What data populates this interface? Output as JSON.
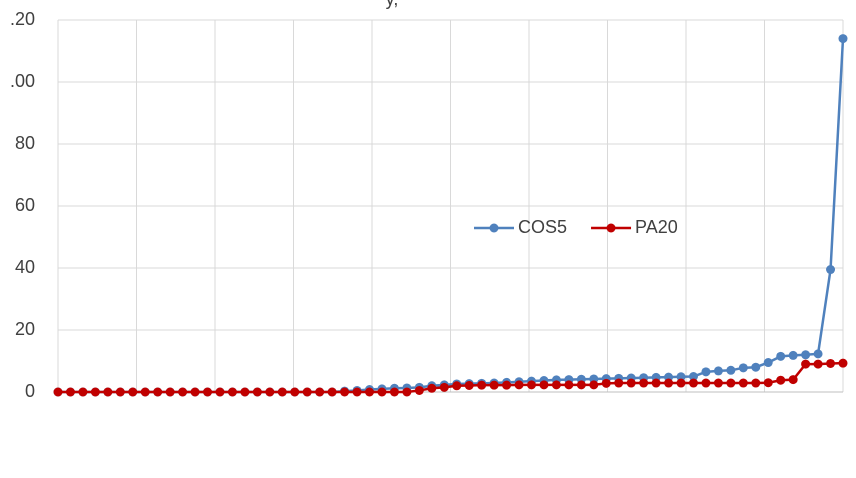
{
  "chart_data": {
    "type": "line",
    "title": "y,",
    "categories": [
      null,
      null,
      null,
      null,
      null,
      null,
      null,
      null,
      null,
      null,
      null,
      null,
      null,
      null,
      null,
      null,
      null,
      null,
      null,
      null,
      null,
      null,
      null,
      null,
      null,
      null,
      null,
      null,
      null,
      null,
      null,
      null,
      null,
      null,
      null,
      null,
      null,
      null,
      null,
      null,
      null,
      null,
      null,
      null,
      null,
      null,
      null,
      null,
      null,
      null,
      null,
      null,
      null,
      null,
      null,
      null,
      null,
      null,
      null,
      null,
      null,
      null,
      null,
      null
    ],
    "series": [
      {
        "name": "COS5",
        "color": "#4f81bd",
        "values": [
          0,
          0,
          0,
          0,
          0,
          0,
          0,
          0,
          0,
          0,
          0,
          0,
          0,
          0,
          0,
          0,
          0,
          0,
          0,
          0,
          0,
          0,
          0,
          0.3,
          0.5,
          0.8,
          1.0,
          1.2,
          1.3,
          1.5,
          2.0,
          2.3,
          2.6,
          2.7,
          2.8,
          2.9,
          3.1,
          3.3,
          3.5,
          3.7,
          3.9,
          4.0,
          4.1,
          4.2,
          4.3,
          4.4,
          4.5,
          4.6,
          4.7,
          4.8,
          4.9,
          5.0,
          6.5,
          6.8,
          7.0,
          7.8,
          8.0,
          9.5,
          11.5,
          11.8,
          12.0,
          12.3,
          39.5,
          114
        ]
      },
      {
        "name": "PA20",
        "color": "#c00000",
        "values": [
          0,
          0,
          0,
          0,
          0,
          0,
          0,
          0,
          0,
          0,
          0,
          0,
          0,
          0,
          0,
          0,
          0,
          0,
          0,
          0,
          0,
          0,
          0,
          0,
          0,
          0,
          0,
          0,
          0,
          0.5,
          1.2,
          1.5,
          2.0,
          2.1,
          2.2,
          2.2,
          2.2,
          2.3,
          2.3,
          2.3,
          2.3,
          2.3,
          2.3,
          2.3,
          2.8,
          2.9,
          2.9,
          2.9,
          2.9,
          2.9,
          2.9,
          2.9,
          2.9,
          2.9,
          2.9,
          2.9,
          2.9,
          3.0,
          3.8,
          4.0,
          9.0,
          9.0,
          9.2,
          9.3
        ]
      }
    ],
    "ylim": [
      0,
      120
    ],
    "yticks": [
      0,
      20,
      40,
      60,
      80,
      {
        "value": 100,
        "label": ".00"
      },
      {
        "value": 120,
        "label": ".20"
      }
    ],
    "grid": true,
    "legend": "right"
  }
}
